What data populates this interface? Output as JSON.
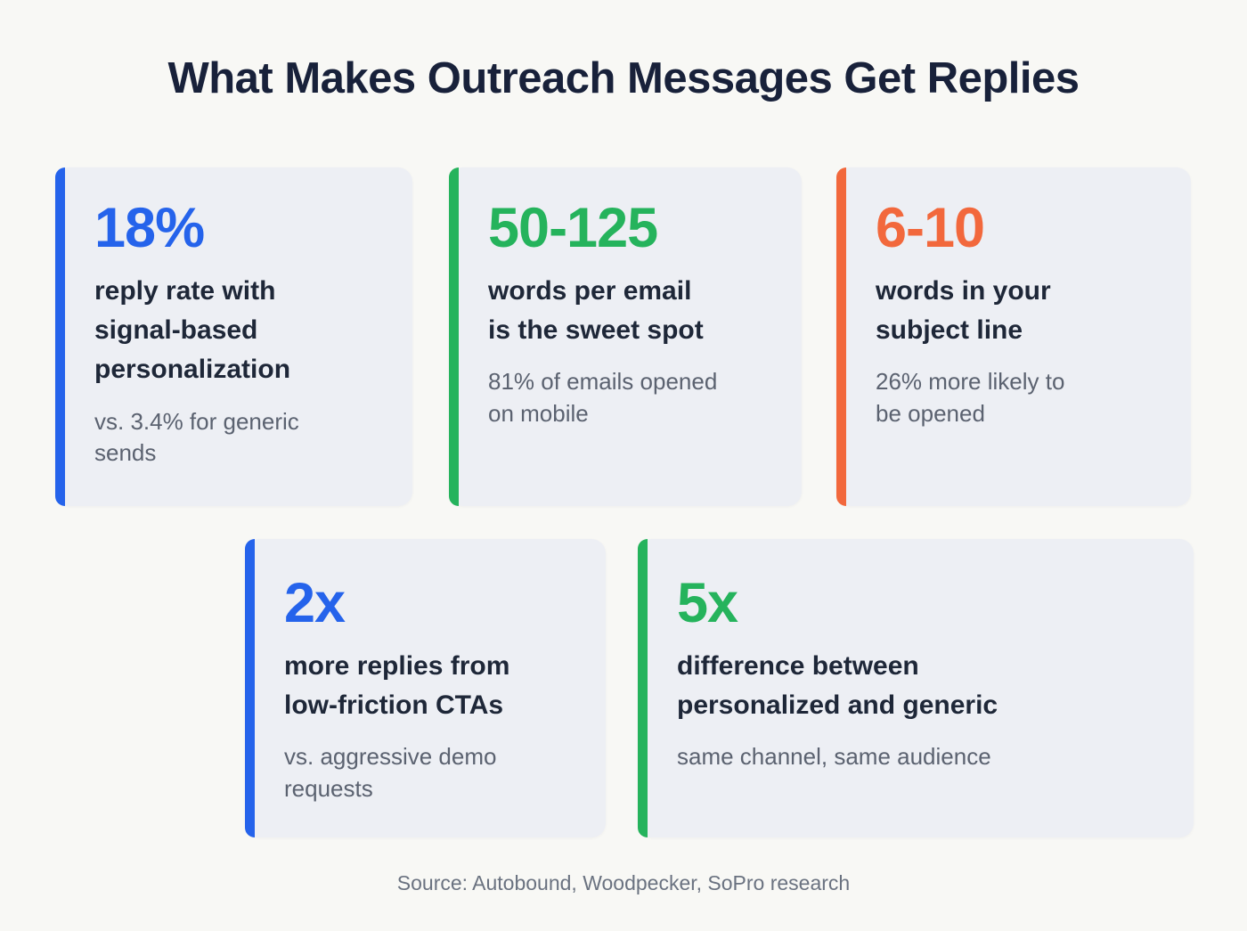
{
  "page": {
    "title": "What Makes Outreach Messages Get Replies",
    "source_line": "Source: Autobound, Woodpecker, SoPro research",
    "background_color": "#f8f8f5",
    "card_background_color": "#edeff4",
    "title_color": "#18213a"
  },
  "accent_colors": {
    "blue": "#2563eb",
    "green": "#25b35c",
    "orange": "#f2683c"
  },
  "cards": [
    {
      "value": "18%",
      "accent_color": "#2563eb",
      "label": "reply rate with\nsignal-based\npersonalization",
      "subtext": "vs. 3.4% for generic\nsends"
    },
    {
      "value": "50-125",
      "accent_color": "#25b35c",
      "label": "words per email\nis the sweet spot",
      "subtext": "81% of emails opened\non mobile"
    },
    {
      "value": "6-10",
      "accent_color": "#f2683c",
      "label": "words in your\nsubject line",
      "subtext": "26% more likely to\nbe opened"
    },
    {
      "value": "2x",
      "accent_color": "#2563eb",
      "label": "more replies from\nlow-friction CTAs",
      "subtext": "vs. aggressive demo\nrequests"
    },
    {
      "value": "5x",
      "accent_color": "#25b35c",
      "label": "difference between\npersonalized and generic",
      "subtext": "same channel, same audience"
    }
  ],
  "chart_data": {
    "type": "table",
    "title": "What Makes Outreach Messages Get Replies",
    "columns": [
      "metric",
      "meaning",
      "supporting_detail"
    ],
    "rows": [
      [
        "18%",
        "reply rate with signal-based personalization",
        "vs. 3.4% for generic sends"
      ],
      [
        "50-125",
        "words per email is the sweet spot",
        "81% of emails opened on mobile"
      ],
      [
        "6-10",
        "words in your subject line",
        "26% more likely to be opened"
      ],
      [
        "2x",
        "more replies from low-friction CTAs",
        "vs. aggressive demo requests"
      ],
      [
        "5x",
        "difference between personalized and generic",
        "same channel, same audience"
      ]
    ],
    "source": "Autobound, Woodpecker, SoPro research"
  }
}
